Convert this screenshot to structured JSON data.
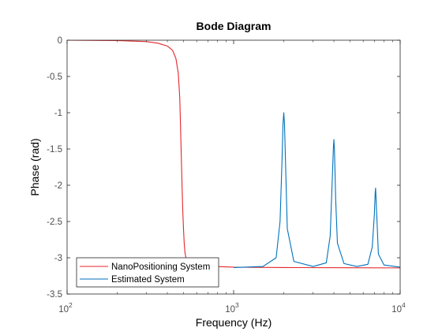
{
  "chart_data": {
    "type": "line",
    "title": "Bode Diagram",
    "xlabel": "Frequency  (Hz)",
    "ylabel": "Phase (rad)",
    "xscale": "log",
    "xlim": [
      100,
      10000
    ],
    "ylim": [
      -3.5,
      0
    ],
    "grid": false,
    "legend_position": "bottom-left",
    "x_ticks": [
      {
        "value": 100,
        "base": "10",
        "exp": "2"
      },
      {
        "value": 1000,
        "base": "10",
        "exp": "3"
      },
      {
        "value": 10000,
        "base": "10",
        "exp": "4"
      }
    ],
    "y_ticks": [
      {
        "value": 0,
        "label": "0"
      },
      {
        "value": -0.5,
        "label": "-0.5"
      },
      {
        "value": -1,
        "label": "-1"
      },
      {
        "value": -1.5,
        "label": "-1.5"
      },
      {
        "value": -2,
        "label": "-2"
      },
      {
        "value": -2.5,
        "label": "-2.5"
      },
      {
        "value": -3,
        "label": "-3"
      },
      {
        "value": -3.5,
        "label": "-3.5"
      }
    ],
    "series": [
      {
        "name": "NanoPositioning System",
        "color": "#e4262b",
        "x": [
          100,
          200,
          300,
          350,
          400,
          430,
          450,
          465,
          475,
          480,
          485,
          490,
          495,
          500,
          505,
          510,
          515,
          520,
          530,
          550,
          600,
          1000,
          2000,
          5000,
          10000
        ],
        "y": [
          0,
          -0.005,
          -0.02,
          -0.04,
          -0.08,
          -0.14,
          -0.25,
          -0.45,
          -0.8,
          -1.2,
          -1.6,
          -2.0,
          -2.35,
          -2.6,
          -2.8,
          -2.92,
          -2.98,
          -3.02,
          -3.06,
          -3.09,
          -3.11,
          -3.13,
          -3.135,
          -3.138,
          -3.14
        ]
      },
      {
        "name": "Estimated System",
        "color": "#0072bd",
        "x": [
          1000,
          1500,
          1800,
          1900,
          1950,
          1980,
          2000,
          2020,
          2050,
          2100,
          2300,
          3000,
          3600,
          3800,
          3900,
          3970,
          4000,
          4030,
          4100,
          4200,
          4600,
          5500,
          6400,
          6800,
          7000,
          7080,
          7120,
          7200,
          7400,
          8000,
          10000
        ],
        "y": [
          -3.135,
          -3.12,
          -3.0,
          -2.5,
          -1.7,
          -1.15,
          -1.0,
          -1.15,
          -1.7,
          -2.6,
          -3.05,
          -3.12,
          -3.07,
          -2.7,
          -2.0,
          -1.5,
          -1.37,
          -1.5,
          -2.2,
          -2.8,
          -3.08,
          -3.12,
          -3.09,
          -2.85,
          -2.4,
          -2.1,
          -2.04,
          -2.3,
          -2.95,
          -3.1,
          -3.13
        ]
      }
    ]
  }
}
